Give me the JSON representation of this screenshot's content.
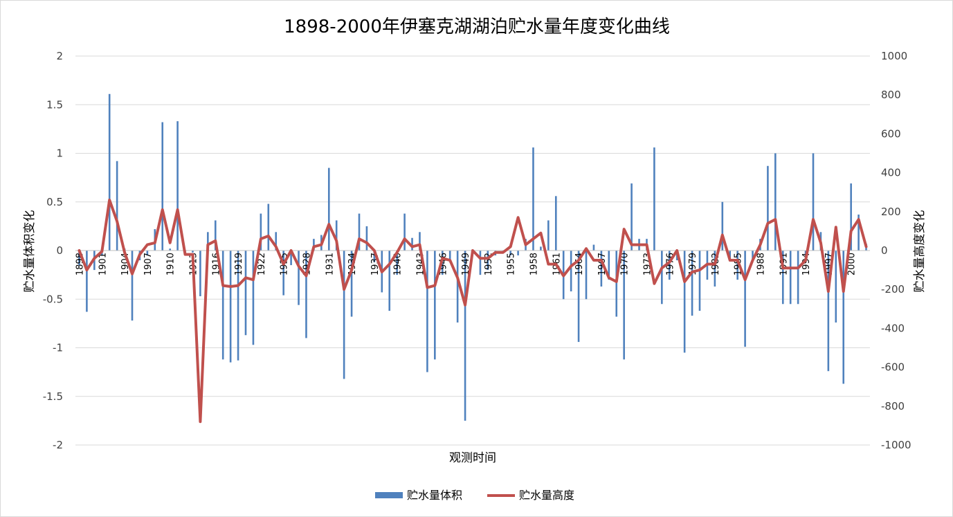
{
  "chart_data": {
    "type": "bar+line",
    "title": "1898-2000年伊塞克湖湖泊贮水量年度变化曲线",
    "xlabel": "观测时间",
    "ylabel_left": "贮水量体积变化",
    "ylabel_right": "贮水量高度变化",
    "ylim_left": [
      -2,
      2
    ],
    "ylim_right": [
      -1000,
      1000
    ],
    "yticks_left": [
      "2",
      "1.5",
      "1",
      "0.5",
      "0",
      "-0.5",
      "-1",
      "-1.5",
      "-2"
    ],
    "yticks_right": [
      "1000",
      "800",
      "600",
      "400",
      "200",
      "0",
      "-200",
      "-400",
      "-600",
      "-800",
      "-1000"
    ],
    "grid": true,
    "legend_position": "bottom",
    "colors": {
      "bar": "#4f81bd",
      "line": "#c0504d",
      "grid": "#d9d9d9"
    },
    "xtick_labels": [
      "1898",
      "1901",
      "1904",
      "1907",
      "1910",
      "1913",
      "1916",
      "1919",
      "1922",
      "1925",
      "1928",
      "1931",
      "1934",
      "1937",
      "1940",
      "1943",
      "1946",
      "1949",
      "1952",
      "1955",
      "1958",
      "1961",
      "1964",
      "1967",
      "1970",
      "1973",
      "1976",
      "1979",
      "1982",
      "1985",
      "1988",
      "1991",
      "1994",
      "1997",
      "2000"
    ],
    "series": [
      {
        "name": "贮水量体积",
        "axis": "left",
        "type": "bar",
        "x_start": 1898,
        "values": [
          -0.15,
          -0.63,
          -0.2,
          -0.05,
          1.61,
          0.92,
          0.02,
          -0.72,
          -0.1,
          -0.05,
          0.22,
          1.32,
          0.02,
          1.33,
          -0.05,
          -0.02,
          -0.47,
          0.19,
          0.31,
          -1.12,
          -1.15,
          -1.13,
          -0.87,
          -0.97,
          0.38,
          0.48,
          0.19,
          -0.46,
          -0.15,
          -0.56,
          -0.9,
          0.12,
          0.16,
          0.85,
          0.31,
          -1.32,
          -0.68,
          0.38,
          0.25,
          -0.12,
          -0.43,
          -0.62,
          -0.25,
          0.38,
          0.13,
          0.19,
          -1.25,
          -1.12,
          -0.25,
          -0.1,
          -0.74,
          -1.75,
          0.01,
          -0.25,
          -0.2,
          -0.05,
          -0.03,
          -0.05,
          -0.05,
          0.12,
          1.06,
          0.04,
          0.31,
          0.56,
          -0.5,
          -0.42,
          -0.94,
          -0.5,
          0.06,
          -0.37,
          -0.3,
          -0.68,
          -1.12,
          0.69,
          0.12,
          0.12,
          1.06,
          -0.55,
          -0.3,
          -0.1,
          -1.05,
          -0.67,
          -0.62,
          -0.3,
          -0.37,
          0.5,
          -0.1,
          -0.3,
          -0.99,
          -0.1,
          0.12,
          0.87,
          1.0,
          -0.55,
          -0.55,
          -0.55,
          -0.1,
          1.0,
          0.19,
          -1.24,
          -0.74,
          -1.37,
          0.69,
          0.37,
          0.07
        ]
      },
      {
        "name": "贮水量高度",
        "axis": "right",
        "type": "line",
        "x_start": 1898,
        "values": [
          0,
          -100,
          -40,
          -5,
          260,
          150,
          -10,
          -120,
          -20,
          30,
          40,
          210,
          40,
          210,
          -20,
          -20,
          -880,
          30,
          50,
          -180,
          -185,
          -180,
          -140,
          -150,
          60,
          75,
          20,
          -70,
          0,
          -80,
          -130,
          20,
          30,
          135,
          50,
          -200,
          -100,
          60,
          40,
          0,
          -110,
          -70,
          -10,
          60,
          20,
          30,
          -190,
          -180,
          -40,
          -50,
          -140,
          -280,
          0,
          -40,
          -40,
          -10,
          -10,
          20,
          170,
          30,
          60,
          90,
          -70,
          -70,
          -130,
          -80,
          -50,
          10,
          -50,
          -50,
          -140,
          -160,
          110,
          30,
          30,
          30,
          -170,
          -90,
          -60,
          0,
          -160,
          -110,
          -100,
          -70,
          -70,
          80,
          -50,
          -50,
          -150,
          -50,
          30,
          140,
          160,
          -90,
          -90,
          -90,
          -50,
          160,
          40,
          -210,
          120,
          -210,
          100,
          160,
          20
        ]
      }
    ]
  }
}
